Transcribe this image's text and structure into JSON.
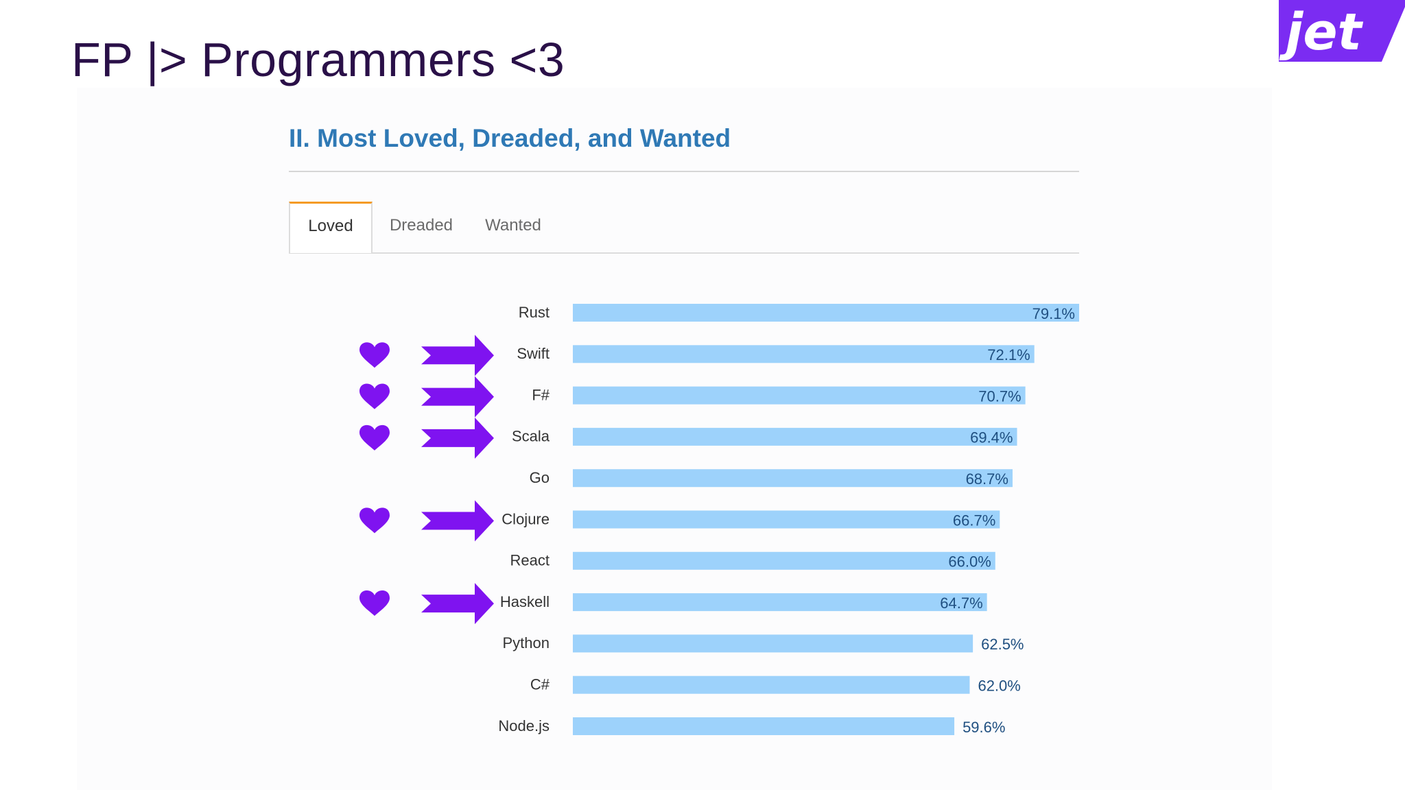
{
  "slide": {
    "title": "FP |> Programmers <3",
    "logo_text": "jet"
  },
  "section": {
    "heading": "II. Most Loved, Dreaded, and Wanted"
  },
  "tabs": [
    {
      "label": "Loved",
      "active": true
    },
    {
      "label": "Dreaded",
      "active": false
    },
    {
      "label": "Wanted",
      "active": false
    }
  ],
  "colors": {
    "bar": "#9dd2fb",
    "accent_purple": "#7f13f0",
    "tab_active_border": "#f49b26",
    "heading": "#2f79b5"
  },
  "chart_data": {
    "type": "bar",
    "orientation": "horizontal",
    "categories": [
      "Rust",
      "Swift",
      "F#",
      "Scala",
      "Go",
      "Clojure",
      "React",
      "Haskell",
      "Python",
      "C#",
      "Node.js"
    ],
    "values": [
      79.1,
      72.1,
      70.7,
      69.4,
      68.7,
      66.7,
      66.0,
      64.7,
      62.5,
      62.0,
      59.6
    ],
    "value_labels": [
      "79.1%",
      "72.1%",
      "70.7%",
      "69.4%",
      "68.7%",
      "66.7%",
      "66.0%",
      "64.7%",
      "62.5%",
      "62.0%",
      "59.6%"
    ],
    "highlighted": [
      false,
      true,
      true,
      true,
      false,
      true,
      false,
      true,
      false,
      false,
      false
    ],
    "grid": false,
    "legend": "none"
  },
  "annotations": {
    "marker_icons": [
      "heart-icon",
      "arrow-right-icon"
    ]
  }
}
